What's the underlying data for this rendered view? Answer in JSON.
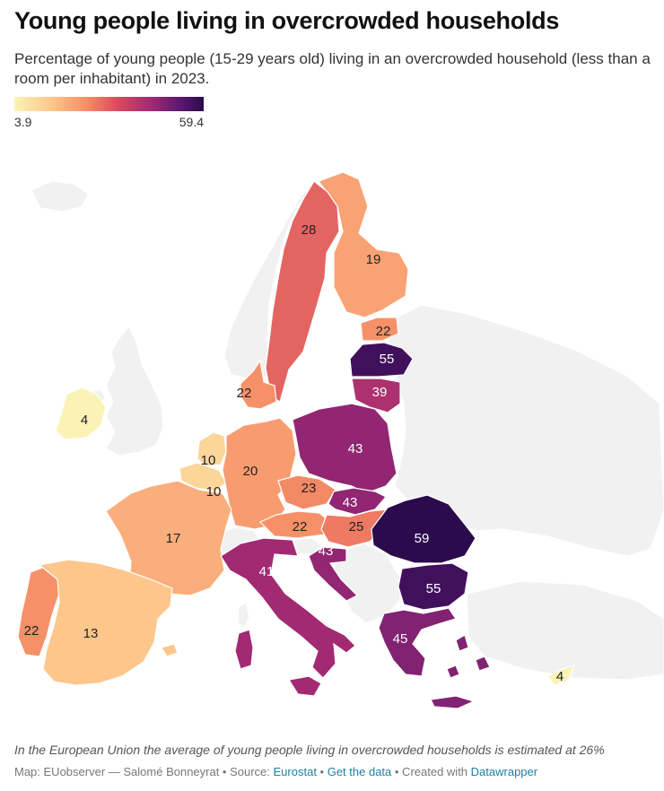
{
  "header": {
    "title": "Young people living in overcrowded households",
    "subtitle": "Percentage of young people (15-29 years old) living in an overcrowded household (less than a room per inhabitant) in 2023."
  },
  "legend": {
    "min_label": "3.9",
    "max_label": "59.4",
    "min_value": 3.9,
    "max_value": 59.4
  },
  "map": {
    "regions": [
      {
        "name": "Sweden",
        "label": "28",
        "value": 28
      },
      {
        "name": "Finland",
        "label": "19",
        "value": 19
      },
      {
        "name": "Estonia",
        "label": "22",
        "value": 22
      },
      {
        "name": "Latvia",
        "label": "55",
        "value": 55
      },
      {
        "name": "Lithuania",
        "label": "39",
        "value": 39
      },
      {
        "name": "Denmark",
        "label": "22",
        "value": 22
      },
      {
        "name": "Ireland",
        "label": "4",
        "value": 4
      },
      {
        "name": "Netherlands",
        "label": "10",
        "value": 10
      },
      {
        "name": "Belgium",
        "label": "10",
        "value": 10
      },
      {
        "name": "Germany",
        "label": "20",
        "value": 20
      },
      {
        "name": "Poland",
        "label": "43",
        "value": 43
      },
      {
        "name": "Czechia",
        "label": "23",
        "value": 23
      },
      {
        "name": "Slovakia",
        "label": "43",
        "value": 43
      },
      {
        "name": "Austria",
        "label": "22",
        "value": 22
      },
      {
        "name": "Hungary",
        "label": "25",
        "value": 25
      },
      {
        "name": "Slovenia",
        "label": "",
        "value": null
      },
      {
        "name": "Croatia",
        "label": "43",
        "value": 43
      },
      {
        "name": "Romania",
        "label": "59",
        "value": 59
      },
      {
        "name": "Bulgaria",
        "label": "55",
        "value": 55
      },
      {
        "name": "France",
        "label": "17",
        "value": 17
      },
      {
        "name": "Italy",
        "label": "41",
        "value": 41
      },
      {
        "name": "Greece",
        "label": "45",
        "value": 45
      },
      {
        "name": "Portugal",
        "label": "22",
        "value": 22
      },
      {
        "name": "Spain",
        "label": "13",
        "value": 13
      },
      {
        "name": "Cyprus",
        "label": "4",
        "value": 4
      }
    ]
  },
  "footer": {
    "note": "In the European Union the average of young people living in overcrowded households is estimated at 26%",
    "credits_prefix": "Map: EUobserver — Salomé Bonneyrat • Source: ",
    "source_link": "Eurostat",
    "sep1": " • ",
    "data_link": "Get the data",
    "sep2": " • Created with ",
    "tool_link": "Datawrapper"
  },
  "colors": {
    "ramp": [
      "#fbf3b5",
      "#fdc58a",
      "#f68e66",
      "#d9485e",
      "#a22a73",
      "#5a1770",
      "#2a0a4a"
    ],
    "non_eu": "#f1f1f1",
    "border": "#ffffff",
    "link": "#1d81a2"
  }
}
